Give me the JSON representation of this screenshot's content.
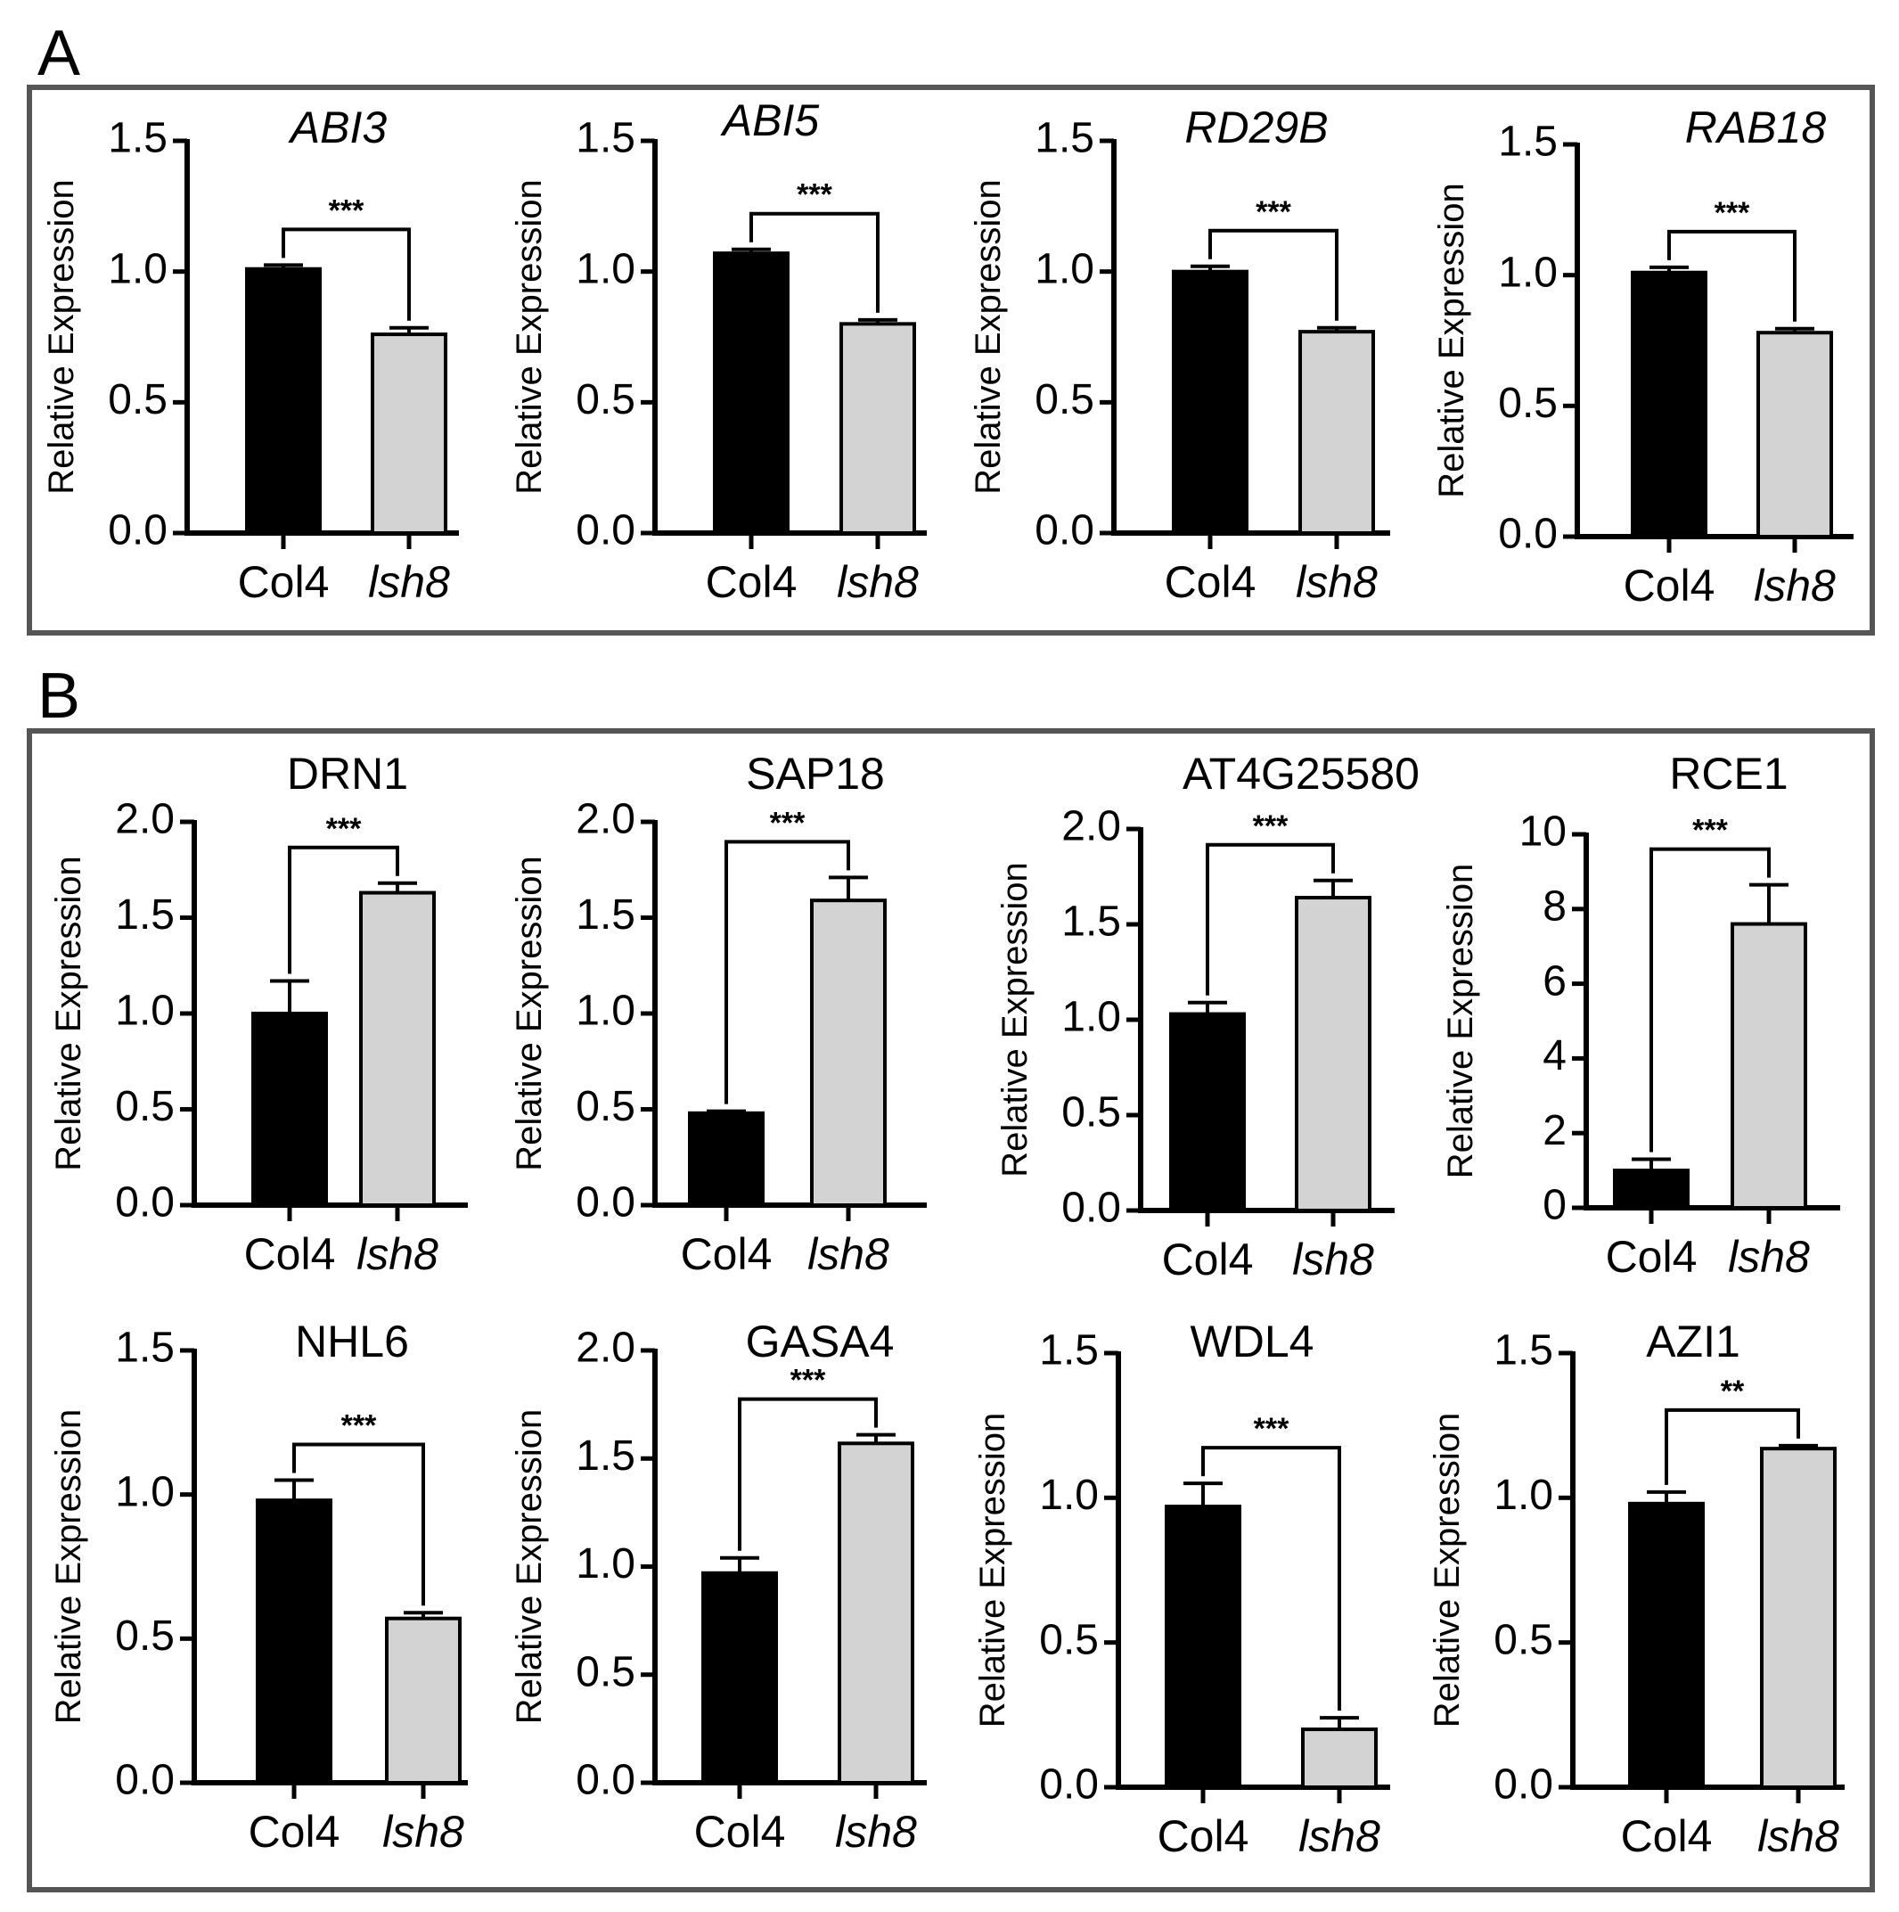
{
  "panels": [
    {
      "letter": "A",
      "name": "panel-a"
    },
    {
      "letter": "B",
      "name": "panel-b"
    }
  ],
  "colors": {
    "col4": "#000000",
    "lsh8": "#d3d3d3",
    "frame": "#555555"
  },
  "chart_data": [
    {
      "panel": "A",
      "type": "bar",
      "title": "ABI3",
      "title_italic": true,
      "ylabel": "Relative Expression",
      "categories": [
        "Col4",
        "lsh8"
      ],
      "values": [
        1.01,
        0.76
      ],
      "errors": [
        0.015,
        0.025
      ],
      "ylim": [
        0,
        1.5
      ],
      "yticks": [
        "0.0",
        "0.5",
        "1.0",
        "1.5"
      ],
      "significance": "***"
    },
    {
      "panel": "A",
      "type": "bar",
      "title": "ABI5",
      "title_italic": true,
      "ylabel": "Relative Expression",
      "categories": [
        "Col4",
        "lsh8"
      ],
      "values": [
        1.07,
        0.8
      ],
      "errors": [
        0.015,
        0.015
      ],
      "ylim": [
        0,
        1.5
      ],
      "yticks": [
        "0.0",
        "0.5",
        "1.0",
        "1.5"
      ],
      "significance": "***"
    },
    {
      "panel": "A",
      "type": "bar",
      "title": "RD29B",
      "title_italic": true,
      "ylabel": "Relative Expression",
      "categories": [
        "Col4",
        "lsh8"
      ],
      "values": [
        1.0,
        0.77
      ],
      "errors": [
        0.02,
        0.015
      ],
      "ylim": [
        0,
        1.5
      ],
      "yticks": [
        "0.0",
        "0.5",
        "1.0",
        "1.5"
      ],
      "significance": "***"
    },
    {
      "panel": "A",
      "type": "bar",
      "title": "RAB18",
      "title_italic": true,
      "ylabel": "Relative Expression",
      "categories": [
        "Col4",
        "lsh8"
      ],
      "values": [
        1.01,
        0.78
      ],
      "errors": [
        0.02,
        0.015
      ],
      "ylim": [
        0,
        1.5
      ],
      "yticks": [
        "0.0",
        "0.5",
        "1.0",
        "1.5"
      ],
      "significance": "***"
    },
    {
      "panel": "B",
      "type": "bar",
      "title": "DRN1",
      "title_italic": false,
      "ylabel": "Relative Expression",
      "categories": [
        "Col4",
        "lsh8"
      ],
      "values": [
        1.0,
        1.63
      ],
      "errors": [
        0.17,
        0.05
      ],
      "ylim": [
        0,
        2.0
      ],
      "yticks": [
        "0.0",
        "0.5",
        "1.0",
        "1.5",
        "2.0"
      ],
      "significance": "***"
    },
    {
      "panel": "B",
      "type": "bar",
      "title": "SAP18",
      "title_italic": false,
      "ylabel": "Relative Expression",
      "categories": [
        "Col4",
        "lsh8"
      ],
      "values": [
        0.48,
        1.59
      ],
      "errors": [
        0.01,
        0.12
      ],
      "ylim": [
        0,
        2.0
      ],
      "yticks": [
        "0.0",
        "0.5",
        "1.0",
        "1.5",
        "2.0"
      ],
      "significance": "***"
    },
    {
      "panel": "B",
      "type": "bar",
      "title": "AT4G25580",
      "title_italic": false,
      "ylabel": "Relative Expression",
      "categories": [
        "Col4",
        "lsh8"
      ],
      "values": [
        1.03,
        1.64
      ],
      "errors": [
        0.06,
        0.09
      ],
      "ylim": [
        0,
        2.0
      ],
      "yticks": [
        "0.0",
        "0.5",
        "1.0",
        "1.5",
        "2.0"
      ],
      "significance": "***"
    },
    {
      "panel": "B",
      "type": "bar",
      "title": "RCE1",
      "title_italic": false,
      "ylabel": "Relative Expression",
      "categories": [
        "Col4",
        "lsh8"
      ],
      "values": [
        1.0,
        7.6
      ],
      "errors": [
        0.3,
        1.05
      ],
      "ylim": [
        0,
        10
      ],
      "yticks": [
        "0",
        "2",
        "4",
        "6",
        "8",
        "10"
      ],
      "significance": "***"
    },
    {
      "panel": "B",
      "type": "bar",
      "title": "NHL6",
      "title_italic": false,
      "ylabel": "Relative Expression",
      "categories": [
        "Col4",
        "lsh8"
      ],
      "values": [
        0.98,
        0.57
      ],
      "errors": [
        0.07,
        0.02
      ],
      "ylim": [
        0,
        1.5
      ],
      "yticks": [
        "0.0",
        "0.5",
        "1.0",
        "1.5"
      ],
      "significance": "***"
    },
    {
      "panel": "B",
      "type": "bar",
      "title": "GASA4",
      "title_italic": false,
      "ylabel": "Relative Expression",
      "categories": [
        "Col4",
        "lsh8"
      ],
      "values": [
        0.97,
        1.57
      ],
      "errors": [
        0.07,
        0.04
      ],
      "ylim": [
        0,
        2.0
      ],
      "yticks": [
        "0.0",
        "0.5",
        "1.0",
        "1.5",
        "2.0"
      ],
      "significance": "***"
    },
    {
      "panel": "B",
      "type": "bar",
      "title": "WDL4",
      "title_italic": false,
      "ylabel": "Relative Expression",
      "categories": [
        "Col4",
        "lsh8"
      ],
      "values": [
        0.97,
        0.2
      ],
      "errors": [
        0.08,
        0.04
      ],
      "ylim": [
        0,
        1.5
      ],
      "yticks": [
        "0.0",
        "0.5",
        "1.0",
        "1.5"
      ],
      "significance": "***"
    },
    {
      "panel": "B",
      "type": "bar",
      "title": "AZI1",
      "title_italic": false,
      "ylabel": "Relative Expression",
      "categories": [
        "Col4",
        "lsh8"
      ],
      "values": [
        0.98,
        1.17
      ],
      "errors": [
        0.04,
        0.01
      ],
      "ylim": [
        0,
        1.5
      ],
      "yticks": [
        "0.0",
        "0.5",
        "1.0",
        "1.5"
      ],
      "significance": "**"
    }
  ]
}
